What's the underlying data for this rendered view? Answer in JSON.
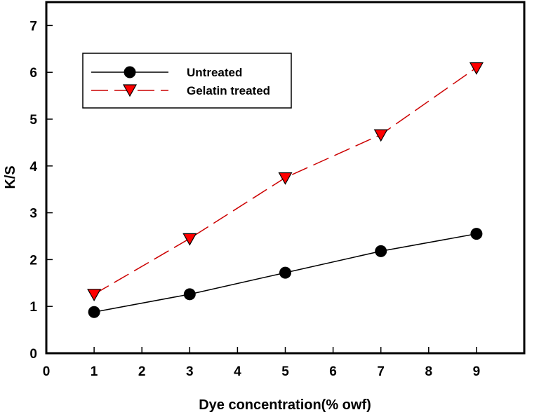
{
  "chart_data": {
    "type": "line",
    "title": "",
    "xlabel": "Dye concentration(% owf)",
    "ylabel": "K/S",
    "xlim": [
      0,
      10
    ],
    "ylim": [
      0,
      7.5
    ],
    "xticks": [
      0,
      1,
      2,
      3,
      4,
      5,
      6,
      7,
      8,
      9
    ],
    "yticks": [
      0,
      1,
      2,
      3,
      4,
      5,
      6,
      7
    ],
    "grid": false,
    "legend_position": "top-left",
    "x": [
      1,
      3,
      5,
      7,
      9
    ],
    "series": [
      {
        "name": "Untreated",
        "values": [
          0.88,
          1.26,
          1.72,
          2.18,
          2.55
        ],
        "line_color": "#000000",
        "line_style": "solid",
        "marker": "circle",
        "marker_fill": "#000000"
      },
      {
        "name": "Gelatin treated",
        "values": [
          1.26,
          2.45,
          3.75,
          4.67,
          6.1
        ],
        "line_color": "#cc0000",
        "line_style": "dashed",
        "marker": "triangle-down",
        "marker_fill": "#ff0000"
      }
    ]
  }
}
